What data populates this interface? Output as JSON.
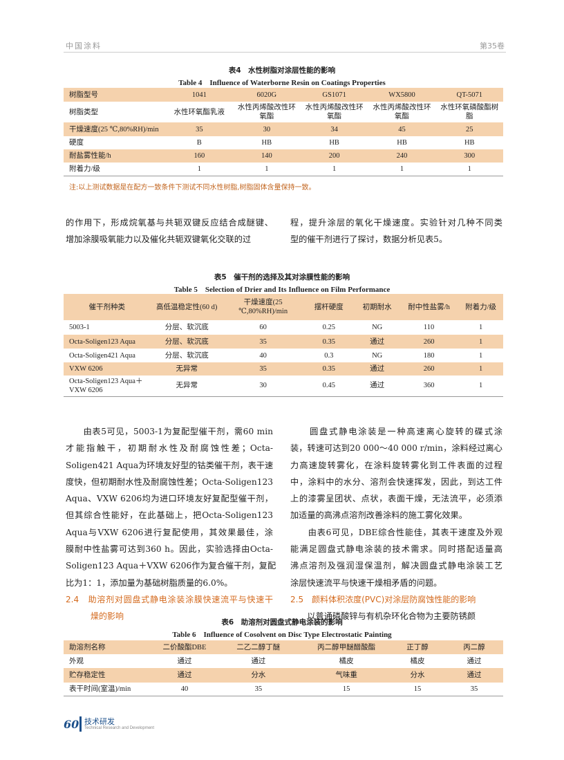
{
  "header": {
    "journal": "中国涂料",
    "volume": "第35卷"
  },
  "table4": {
    "caption_cn": "表4　水性树脂对涂层性能的影响",
    "caption_en": "Table 4　Influence of Waterborne Resin on Coatings Properties",
    "rows": [
      [
        "树脂型号",
        "1041",
        "6020G",
        "GS1071",
        "WX5800",
        "QT-5071"
      ],
      [
        "树脂类型",
        "水性环氧酯乳液",
        "水性丙烯酸改性环氧酯",
        "水性丙烯酸改性环氧酯",
        "水性丙烯酸改性环氧酯",
        "水性环氧磷酸酯树脂"
      ],
      [
        "干燥速度(25 ℃,80%RH)/min",
        "35",
        "30",
        "34",
        "45",
        "25"
      ],
      [
        "硬度",
        "B",
        "HB",
        "HB",
        "HB",
        "HB"
      ],
      [
        "耐盐雾性能/h",
        "160",
        "140",
        "200",
        "240",
        "300"
      ],
      [
        "附着力/级",
        "1",
        "1",
        "1",
        "1",
        "1"
      ]
    ],
    "note": "注:以上测试数据是在配方一致条件下测试不同水性树脂,树脂固体含量保持一致。"
  },
  "para1": {
    "left": [
      "的作用下，形成烷氧基与共轭双键反应结合成醚键、",
      "增加涂膜吸氧能力以及催化共轭双键氧化交联的过"
    ],
    "right": [
      "程，提升涂层的氧化干燥速度。实验针对几种不同类",
      "型的催干剂进行了探讨，数据分析见表5。"
    ]
  },
  "table5": {
    "caption_cn": "表5　催干剂的选择及其对涂膜性能的影响",
    "caption_en": "Table 5　Selection of Drier and Its Influence on Film Performance",
    "headers": [
      "催干剂种类",
      "高低温稳定性(60 d)",
      "干燥速度(25 ℃,80%RH)/min",
      "摆杆硬度",
      "初期耐水",
      "耐中性盐雾/h",
      "附着力/级"
    ],
    "rows": [
      [
        "5003-1",
        "分层、软沉底",
        "60",
        "0.25",
        "NG",
        "110",
        "1"
      ],
      [
        "Octa-Soligen123 Aqua",
        "分层、软沉底",
        "35",
        "0.35",
        "通过",
        "260",
        "1"
      ],
      [
        "Octa-Soligen421 Aqua",
        "分层、软沉底",
        "40",
        "0.3",
        "NG",
        "180",
        "1"
      ],
      [
        "VXW 6206",
        "无异常",
        "35",
        "0.35",
        "通过",
        "260",
        "1"
      ],
      [
        "Octa-Soligen123 Aqua＋VXW 6206",
        "无异常",
        "30",
        "0.45",
        "通过",
        "360",
        "1"
      ]
    ]
  },
  "body": {
    "left": [
      "　　由表5可见，5003-1为复配型催干剂，需60 min",
      "才能指触干，初期耐水性及耐腐蚀性差；Octa-",
      "Soligen421 Aqua为环境友好型的钴类催干剂，表干速",
      "度快，但初期耐水性及耐腐蚀性差；Octa-Soligen123",
      "Aqua、VXW 6206均为进口环境友好复配型催干剂，",
      "但其综合性能好，在此基础上，把Octa-Soligen123",
      "Aqua与VXW 6206进行复配使用，其效果最佳，涂",
      "膜耐中性盐雾可达到360 h。因此，实验选择由Octa-",
      "Soligen123 Aqua＋VXW 6206作为复合催干剂，复配",
      "比为1：1，添加量为基础树脂质量的6.0%。"
    ],
    "heading_24": [
      "2.4　助溶剂对圆盘式静电涂装涂膜快速流平与快速干",
      "　　　燥的影响"
    ],
    "right": [
      "　　圆盘式静电涂装是一种高速离心旋转的碟式涂",
      "装，转速可达到20 000～40 000 r/min，涂料经过离心",
      "力高速旋转雾化，在涂料旋转雾化到工件表面的过程",
      "中，涂料中的水分、溶剂会快速挥发，因此，到达工件",
      "上的漆雾呈团状、点状，表面干燥，无法流平，必须添",
      "加适量的高沸点溶剂改善涂料的施工雾化效果。",
      "　　由表6可见，DBE综合性能佳，其表干速度及外观",
      "能满足圆盘式静电涂装的技术需求。同时搭配适量高",
      "沸点溶剂及强润湿保温剂，解决圆盘式静电涂装工艺",
      "涂层快速流平与快速干燥相矛盾的问题。"
    ],
    "heading_25": "2.5　颜料体积浓度(PVC)对涂层防腐蚀性能的影响",
    "right_tail": "　　以普通磷酸锌与有机杂环化合物为主要防锈颜"
  },
  "table6": {
    "caption_cn": "表6　助溶剂对圆盘式静电涂装的影响",
    "caption_en": "Table 6　Influence of Cosolvent on Disc Type Electrostatic Painting",
    "rows": [
      [
        "助溶剂名称",
        "二价酸酯DBE",
        "二乙二醇丁醚",
        "丙二醇甲醚醋酸酯",
        "正丁醇",
        "丙二醇"
      ],
      [
        "外观",
        "通过",
        "通过",
        "橘皮",
        "橘皮",
        "通过"
      ],
      [
        "贮存稳定性",
        "通过",
        "分水",
        "气味重",
        "分水",
        "通过"
      ],
      [
        "表干时间(室温)/min",
        "40",
        "35",
        "15",
        "15",
        "35"
      ]
    ]
  },
  "footer": {
    "page": "60",
    "section_cn": "技术研发",
    "section_en": "Technical Research and Development"
  },
  "colors": {
    "table_band": "#f5d2ad",
    "heading": "#d46a1e",
    "note": "#c2641d",
    "footer": "#1b4f8a"
  }
}
